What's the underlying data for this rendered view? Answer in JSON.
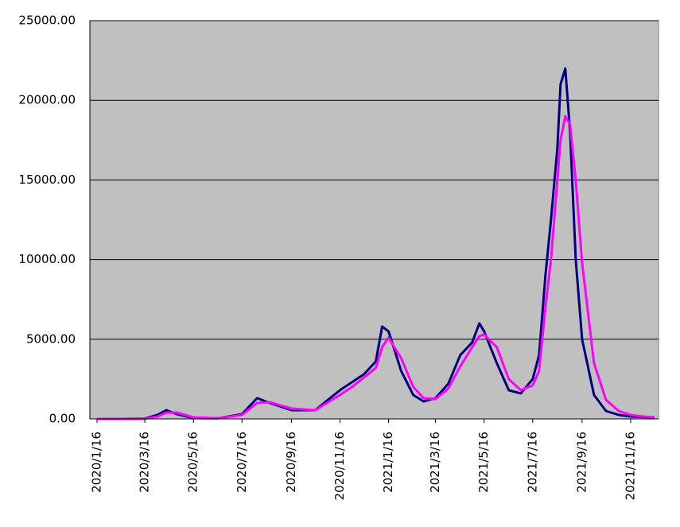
{
  "chart_data": {
    "type": "line",
    "x": [
      "2020/1/16",
      "2020/2/16",
      "2020/3/16",
      "2020/4/1",
      "2020/4/12",
      "2020/4/25",
      "2020/5/16",
      "2020/6/16",
      "2020/7/16",
      "2020/8/4",
      "2020/8/20",
      "2020/9/16",
      "2020/10/16",
      "2020/11/16",
      "2020/12/1",
      "2020/12/16",
      "2020/12/31",
      "2021/1/8",
      "2021/1/16",
      "2021/2/1",
      "2021/2/16",
      "2021/3/1",
      "2021/3/16",
      "2021/4/1",
      "2021/4/16",
      "2021/5/1",
      "2021/5/10",
      "2021/5/16",
      "2021/6/1",
      "2021/6/16",
      "2021/7/1",
      "2021/7/16",
      "2021/7/24",
      "2021/8/1",
      "2021/8/8",
      "2021/8/16",
      "2021/8/20",
      "2021/8/26",
      "2021/9/1",
      "2021/9/8",
      "2021/9/16",
      "2021/10/1",
      "2021/10/16",
      "2021/11/1",
      "2021/11/16",
      "2021/12/1",
      "2021/12/16"
    ],
    "series": [
      {
        "color": "#000080",
        "values": [
          0,
          0,
          20,
          250,
          550,
          300,
          50,
          40,
          300,
          1300,
          1000,
          550,
          550,
          1800,
          2300,
          2800,
          3600,
          5800,
          5500,
          3000,
          1500,
          1100,
          1300,
          2200,
          4000,
          4800,
          6000,
          5500,
          3500,
          1800,
          1600,
          2500,
          4000,
          9000,
          12500,
          17000,
          21000,
          22000,
          18000,
          10000,
          5000,
          1500,
          500,
          250,
          150,
          120,
          100
        ]
      },
      {
        "color": "#ff00ff",
        "values": [
          0,
          0,
          10,
          150,
          400,
          400,
          100,
          40,
          250,
          1000,
          1050,
          650,
          550,
          1500,
          2000,
          2600,
          3200,
          4500,
          5100,
          3800,
          2000,
          1300,
          1250,
          1900,
          3300,
          4500,
          5200,
          5300,
          4500,
          2500,
          1800,
          2100,
          3000,
          7000,
          10000,
          15000,
          17500,
          19000,
          18500,
          15000,
          9800,
          3500,
          1200,
          500,
          250,
          150,
          100
        ]
      }
    ],
    "xlim": [
      "2020/1/7",
      "2021/12/21"
    ],
    "xticks": [
      "2020/1/16",
      "2020/3/16",
      "2020/5/16",
      "2020/7/16",
      "2020/9/16",
      "2020/11/16",
      "2021/1/16",
      "2021/3/16",
      "2021/5/16",
      "2021/7/16",
      "2021/9/16",
      "2021/11/16"
    ],
    "ylim": [
      0,
      25000
    ],
    "yticks": [
      {
        "value": 0,
        "label": "0.00"
      },
      {
        "value": 5000,
        "label": "5000.00"
      },
      {
        "value": 10000,
        "label": "10000.00"
      },
      {
        "value": 15000,
        "label": "15000.00"
      },
      {
        "value": 20000,
        "label": "20000.00"
      },
      {
        "value": 25000,
        "label": "25000.00"
      }
    ],
    "grid": true,
    "background": "#c0c0c0"
  }
}
